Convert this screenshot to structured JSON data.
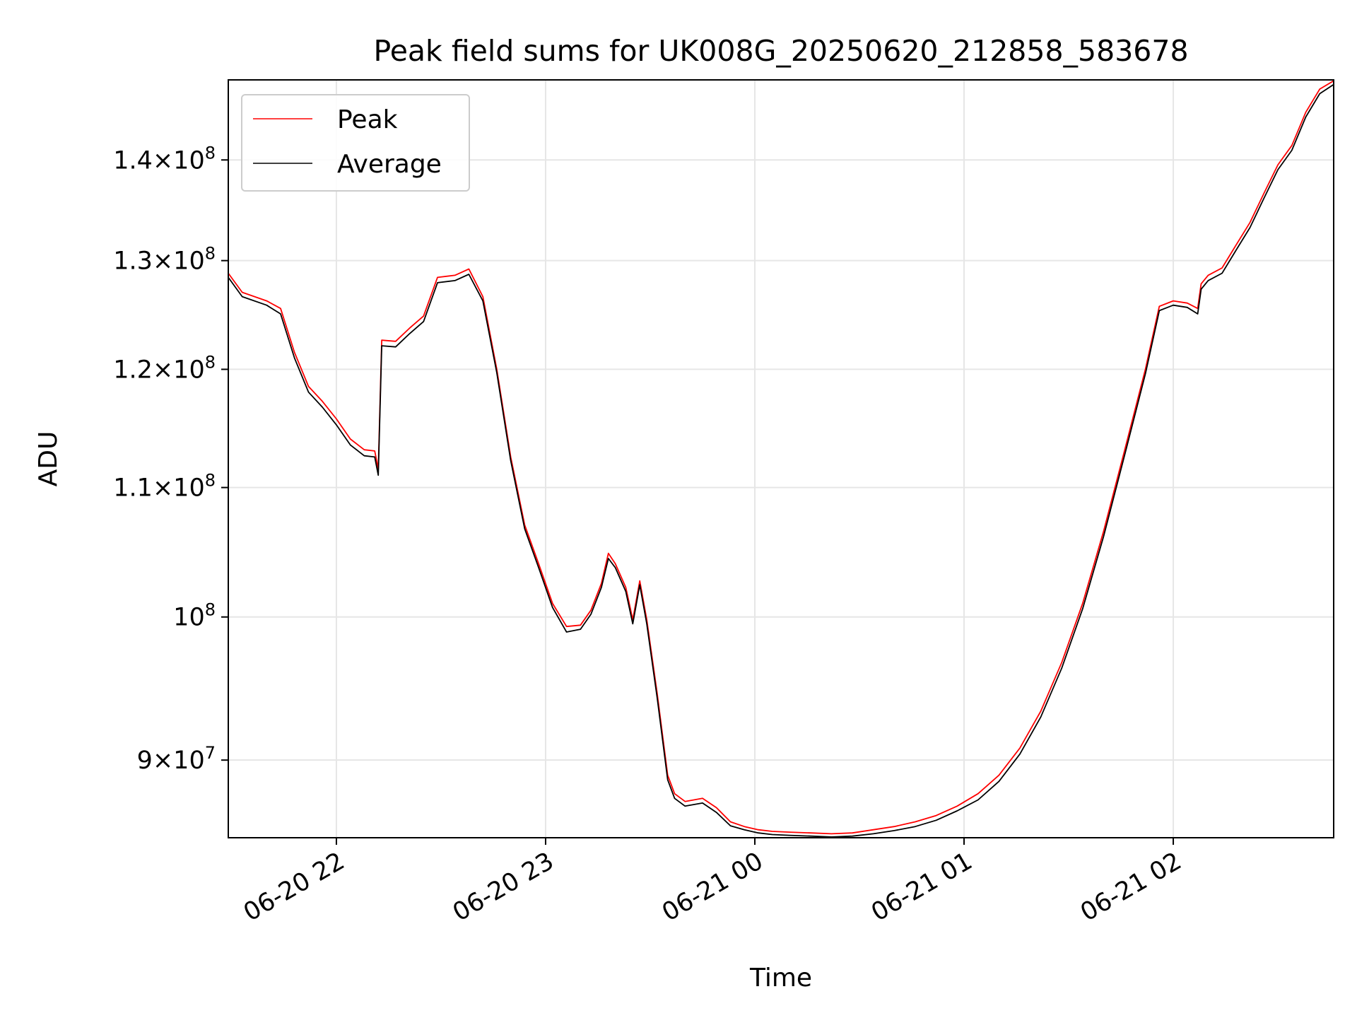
{
  "chart_data": {
    "type": "line",
    "title": "Peak field sums for UK008G_20250620_212858_583678",
    "xlabel": "Time",
    "ylabel": "ADU",
    "y_scale": "log",
    "ylim": [
      85000000,
      148500000
    ],
    "xlim": [
      "2025-06-20 21:29",
      "2025-06-21 02:46"
    ],
    "grid": true,
    "legend_position": "upper-left",
    "x_ticks": [
      {
        "label": "06-20 22",
        "value": "2025-06-20 22:00"
      },
      {
        "label": "06-20 23",
        "value": "2025-06-20 23:00"
      },
      {
        "label": "06-21 00",
        "value": "2025-06-21 00:00"
      },
      {
        "label": "06-21 01",
        "value": "2025-06-21 01:00"
      },
      {
        "label": "06-21 02",
        "value": "2025-06-21 02:00"
      }
    ],
    "y_ticks": [
      {
        "base": "9",
        "exp": "7",
        "value": 90000000
      },
      {
        "base": "",
        "exp": "8",
        "value": 100000000
      },
      {
        "base": "1.1",
        "exp": "8",
        "value": 110000000
      },
      {
        "base": "1.2",
        "exp": "8",
        "value": 120000000
      },
      {
        "base": "1.3",
        "exp": "8",
        "value": 130000000
      },
      {
        "base": "1.4",
        "exp": "8",
        "value": 140000000
      }
    ],
    "series": [
      {
        "name": "Peak",
        "color": "#ff0000",
        "points": [
          [
            "2025-06-20 21:29",
            128800000
          ],
          [
            "2025-06-20 21:33",
            127000000
          ],
          [
            "2025-06-20 21:40",
            126200000
          ],
          [
            "2025-06-20 21:44",
            125500000
          ],
          [
            "2025-06-20 21:48",
            121500000
          ],
          [
            "2025-06-20 21:52",
            118500000
          ],
          [
            "2025-06-20 21:56",
            117200000
          ],
          [
            "2025-06-20 22:00",
            115700000
          ],
          [
            "2025-06-20 22:04",
            114000000
          ],
          [
            "2025-06-20 22:08",
            113100000
          ],
          [
            "2025-06-20 22:11",
            113000000
          ],
          [
            "2025-06-20 22:12",
            111500000
          ],
          [
            "2025-06-20 22:13",
            122600000
          ],
          [
            "2025-06-20 22:17",
            122500000
          ],
          [
            "2025-06-20 22:21",
            123700000
          ],
          [
            "2025-06-20 22:25",
            124800000
          ],
          [
            "2025-06-20 22:29",
            128400000
          ],
          [
            "2025-06-20 22:34",
            128600000
          ],
          [
            "2025-06-20 22:38",
            129200000
          ],
          [
            "2025-06-20 22:42",
            126600000
          ],
          [
            "2025-06-20 22:46",
            120000000
          ],
          [
            "2025-06-20 22:50",
            112500000
          ],
          [
            "2025-06-20 22:54",
            107000000
          ],
          [
            "2025-06-20 22:58",
            104000000
          ],
          [
            "2025-06-20 23:02",
            101000000
          ],
          [
            "2025-06-20 23:06",
            99300000
          ],
          [
            "2025-06-20 23:10",
            99400000
          ],
          [
            "2025-06-20 23:13",
            100500000
          ],
          [
            "2025-06-20 23:16",
            102500000
          ],
          [
            "2025-06-20 23:18",
            104800000
          ],
          [
            "2025-06-20 23:20",
            104000000
          ],
          [
            "2025-06-20 23:23",
            102200000
          ],
          [
            "2025-06-20 23:25",
            99800000
          ],
          [
            "2025-06-20 23:27",
            102700000
          ],
          [
            "2025-06-20 23:29",
            99800000
          ],
          [
            "2025-06-20 23:32",
            94500000
          ],
          [
            "2025-06-20 23:35",
            89000000
          ],
          [
            "2025-06-20 23:37",
            87800000
          ],
          [
            "2025-06-20 23:40",
            87300000
          ],
          [
            "2025-06-20 23:45",
            87500000
          ],
          [
            "2025-06-20 23:49",
            86900000
          ],
          [
            "2025-06-20 23:53",
            86000000
          ],
          [
            "2025-06-20 23:57",
            85700000
          ],
          [
            "2025-06-21 00:01",
            85500000
          ],
          [
            "2025-06-21 00:05",
            85400000
          ],
          [
            "2025-06-21 00:10",
            85350000
          ],
          [
            "2025-06-21 00:16",
            85300000
          ],
          [
            "2025-06-21 00:22",
            85250000
          ],
          [
            "2025-06-21 00:28",
            85300000
          ],
          [
            "2025-06-21 00:34",
            85500000
          ],
          [
            "2025-06-21 00:40",
            85700000
          ],
          [
            "2025-06-21 00:46",
            86000000
          ],
          [
            "2025-06-21 00:52",
            86400000
          ],
          [
            "2025-06-21 00:58",
            87000000
          ],
          [
            "2025-06-21 01:04",
            87800000
          ],
          [
            "2025-06-21 01:10",
            89000000
          ],
          [
            "2025-06-21 01:16",
            90800000
          ],
          [
            "2025-06-21 01:22",
            93300000
          ],
          [
            "2025-06-21 01:28",
            96700000
          ],
          [
            "2025-06-21 01:34",
            101000000
          ],
          [
            "2025-06-21 01:40",
            106500000
          ],
          [
            "2025-06-21 01:46",
            113000000
          ],
          [
            "2025-06-21 01:52",
            120000000
          ],
          [
            "2025-06-21 01:56",
            125700000
          ],
          [
            "2025-06-21 02:00",
            126200000
          ],
          [
            "2025-06-21 02:04",
            126000000
          ],
          [
            "2025-06-21 02:07",
            125500000
          ],
          [
            "2025-06-21 02:08",
            127800000
          ],
          [
            "2025-06-21 02:10",
            128600000
          ],
          [
            "2025-06-21 02:14",
            129300000
          ],
          [
            "2025-06-21 02:18",
            131500000
          ],
          [
            "2025-06-21 02:22",
            133700000
          ],
          [
            "2025-06-21 02:26",
            136600000
          ],
          [
            "2025-06-21 02:30",
            139500000
          ],
          [
            "2025-06-21 02:34",
            141500000
          ],
          [
            "2025-06-21 02:38",
            145000000
          ],
          [
            "2025-06-21 02:42",
            147500000
          ],
          [
            "2025-06-21 02:46",
            148400000
          ]
        ]
      },
      {
        "name": "Average",
        "color": "#000000",
        "points": [
          [
            "2025-06-20 21:29",
            128400000
          ],
          [
            "2025-06-20 21:33",
            126600000
          ],
          [
            "2025-06-20 21:40",
            125800000
          ],
          [
            "2025-06-20 21:44",
            125000000
          ],
          [
            "2025-06-20 21:48",
            121000000
          ],
          [
            "2025-06-20 21:52",
            118000000
          ],
          [
            "2025-06-20 21:56",
            116700000
          ],
          [
            "2025-06-20 22:00",
            115200000
          ],
          [
            "2025-06-20 22:04",
            113500000
          ],
          [
            "2025-06-20 22:08",
            112600000
          ],
          [
            "2025-06-20 22:11",
            112500000
          ],
          [
            "2025-06-20 22:12",
            111000000
          ],
          [
            "2025-06-20 22:13",
            122100000
          ],
          [
            "2025-06-20 22:17",
            122000000
          ],
          [
            "2025-06-20 22:21",
            123200000
          ],
          [
            "2025-06-20 22:25",
            124300000
          ],
          [
            "2025-06-20 22:29",
            127900000
          ],
          [
            "2025-06-20 22:34",
            128100000
          ],
          [
            "2025-06-20 22:38",
            128700000
          ],
          [
            "2025-06-20 22:42",
            126200000
          ],
          [
            "2025-06-20 22:46",
            119700000
          ],
          [
            "2025-06-20 22:50",
            112200000
          ],
          [
            "2025-06-20 22:54",
            106700000
          ],
          [
            "2025-06-20 22:58",
            103700000
          ],
          [
            "2025-06-20 23:02",
            100700000
          ],
          [
            "2025-06-20 23:06",
            98900000
          ],
          [
            "2025-06-20 23:10",
            99100000
          ],
          [
            "2025-06-20 23:13",
            100200000
          ],
          [
            "2025-06-20 23:16",
            102200000
          ],
          [
            "2025-06-20 23:18",
            104400000
          ],
          [
            "2025-06-20 23:20",
            103700000
          ],
          [
            "2025-06-20 23:23",
            101900000
          ],
          [
            "2025-06-20 23:25",
            99500000
          ],
          [
            "2025-06-20 23:27",
            102400000
          ],
          [
            "2025-06-20 23:29",
            99500000
          ],
          [
            "2025-06-20 23:32",
            94200000
          ],
          [
            "2025-06-20 23:35",
            88700000
          ],
          [
            "2025-06-20 23:37",
            87500000
          ],
          [
            "2025-06-20 23:40",
            87000000
          ],
          [
            "2025-06-20 23:45",
            87200000
          ],
          [
            "2025-06-20 23:49",
            86600000
          ],
          [
            "2025-06-20 23:53",
            85750000
          ],
          [
            "2025-06-20 23:57",
            85500000
          ],
          [
            "2025-06-21 00:01",
            85300000
          ],
          [
            "2025-06-21 00:05",
            85200000
          ],
          [
            "2025-06-21 00:10",
            85150000
          ],
          [
            "2025-06-21 00:16",
            85100000
          ],
          [
            "2025-06-21 00:22",
            85050000
          ],
          [
            "2025-06-21 00:28",
            85100000
          ],
          [
            "2025-06-21 00:34",
            85250000
          ],
          [
            "2025-06-21 00:40",
            85450000
          ],
          [
            "2025-06-21 00:46",
            85700000
          ],
          [
            "2025-06-21 00:52",
            86100000
          ],
          [
            "2025-06-21 00:58",
            86700000
          ],
          [
            "2025-06-21 01:04",
            87400000
          ],
          [
            "2025-06-21 01:10",
            88600000
          ],
          [
            "2025-06-21 01:16",
            90400000
          ],
          [
            "2025-06-21 01:22",
            92900000
          ],
          [
            "2025-06-21 01:28",
            96300000
          ],
          [
            "2025-06-21 01:34",
            100600000
          ],
          [
            "2025-06-21 01:40",
            106100000
          ],
          [
            "2025-06-21 01:46",
            112600000
          ],
          [
            "2025-06-21 01:52",
            119600000
          ],
          [
            "2025-06-21 01:56",
            125300000
          ],
          [
            "2025-06-21 02:00",
            125800000
          ],
          [
            "2025-06-21 02:04",
            125600000
          ],
          [
            "2025-06-21 02:07",
            125000000
          ],
          [
            "2025-06-21 02:08",
            127300000
          ],
          [
            "2025-06-21 02:10",
            128100000
          ],
          [
            "2025-06-21 02:14",
            128800000
          ],
          [
            "2025-06-21 02:18",
            131000000
          ],
          [
            "2025-06-21 02:22",
            133200000
          ],
          [
            "2025-06-21 02:26",
            136100000
          ],
          [
            "2025-06-21 02:30",
            139000000
          ],
          [
            "2025-06-21 02:34",
            141000000
          ],
          [
            "2025-06-21 02:38",
            144500000
          ],
          [
            "2025-06-21 02:42",
            147000000
          ],
          [
            "2025-06-21 02:46",
            148000000
          ]
        ]
      }
    ]
  }
}
